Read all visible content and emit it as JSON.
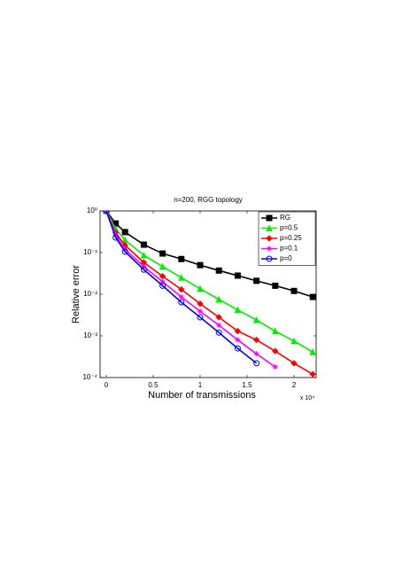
{
  "chart_data": {
    "type": "line",
    "title": "n=200, RGG topology",
    "x_label": "Number of transmissions",
    "x_multiplier": "x 10⁴",
    "y_label": "Relative error",
    "x": [
      0,
      0.1,
      0.2,
      0.4,
      0.6,
      0.8,
      1.0,
      1.2,
      1.4,
      1.6,
      1.8,
      2.0,
      2.2
    ],
    "series": [
      {
        "name": "RG",
        "color": "#000000",
        "marker": "square",
        "values": [
          1,
          0.5,
          0.31,
          0.155,
          0.095,
          0.07,
          0.05,
          0.037,
          0.028,
          0.021,
          0.016,
          0.012,
          0.0086
        ]
      },
      {
        "name": "p=0.5",
        "color": "#00ee00",
        "marker": "triangle",
        "values": [
          1,
          0.37,
          0.2,
          0.086,
          0.046,
          0.025,
          0.0135,
          0.0075,
          0.0042,
          0.0024,
          0.0013,
          0.00075,
          0.00041
        ]
      },
      {
        "name": "p=0.25",
        "color": "#ff0000",
        "marker": "diamond",
        "values": [
          1,
          0.3,
          0.15,
          0.058,
          0.027,
          0.013,
          0.0059,
          0.0028,
          0.0013,
          0.0008,
          0.00043,
          0.00022,
          0.00012
        ]
      },
      {
        "name": "p=0.1",
        "color": "#ff00ff",
        "marker": "star",
        "values": [
          1,
          0.27,
          0.12,
          0.046,
          0.02,
          0.0086,
          0.0039,
          0.0018,
          0.0008,
          0.00037,
          0.00018,
          null,
          null
        ]
      },
      {
        "name": "p=0",
        "color": "#0000ff",
        "marker": "circle",
        "values": [
          1,
          0.23,
          0.105,
          0.039,
          0.016,
          0.0064,
          0.0028,
          0.0012,
          0.0005,
          0.00022,
          null,
          null,
          null
        ]
      }
    ],
    "xlim": [
      -0.066,
      2.236
    ],
    "xticks": [
      0,
      0.5,
      1,
      1.5,
      2
    ],
    "ylim": [
      0.0001,
      1
    ],
    "log_y": true,
    "yticks": [
      {
        "value": 1,
        "label": "10⁰"
      },
      {
        "value": 0.1,
        "label": "10⁻¹"
      },
      {
        "value": 0.01,
        "label": "10⁻²"
      },
      {
        "value": 0.001,
        "label": "10⁻³"
      },
      {
        "value": 0.0001,
        "label": "10⁻⁴"
      }
    ],
    "legend": "top-right",
    "grid": false
  }
}
